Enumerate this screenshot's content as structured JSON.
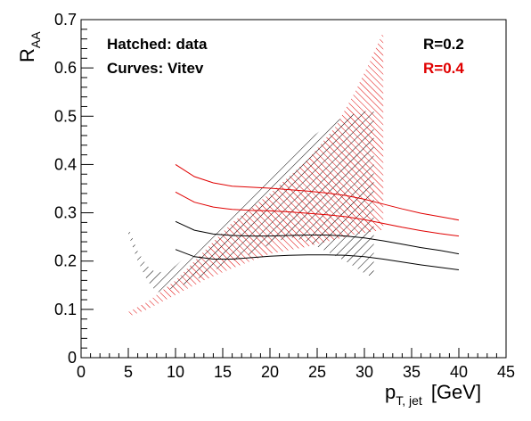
{
  "chart_data": {
    "type": "area",
    "xlabel": "p",
    "xlabel_sub": "T, jet",
    "xlabel_unit": "[GeV]",
    "ylabel": "R",
    "ylabel_sub": "AA",
    "xlim": [
      0,
      45
    ],
    "ylim": [
      0,
      0.7
    ],
    "xticks": [
      0,
      5,
      10,
      15,
      20,
      25,
      30,
      35,
      40,
      45
    ],
    "yticks": [
      0,
      0.1,
      0.2,
      0.3,
      0.4,
      0.5,
      0.6,
      0.7
    ],
    "xtick_labels": [
      "0",
      "5",
      "10",
      "15",
      "20",
      "25",
      "30",
      "35",
      "40",
      "45"
    ],
    "ytick_labels": [
      "0",
      "0.1",
      "0.2",
      "0.3",
      "0.4",
      "0.5",
      "0.6",
      "0.7"
    ],
    "legend": {
      "left_line1": "Hatched: data",
      "left_line2": "Curves: Vitev",
      "r02": "R=0.2",
      "r04": "R=0.4"
    },
    "colors": {
      "r02": "#000000",
      "r04": "#e00000"
    },
    "bands": [
      {
        "name": "R=0.2",
        "color": "#000000",
        "x": [
          5.0,
          6.0,
          7.0,
          8.0,
          9.0,
          10.0,
          12.0,
          14.0,
          16.0,
          18.0,
          20.0,
          22.0,
          24.0,
          26.0,
          28.0,
          30.0,
          31.0
        ],
        "upper": [
          0.27,
          0.22,
          0.19,
          0.175,
          0.18,
          0.19,
          0.225,
          0.26,
          0.3,
          0.34,
          0.38,
          0.42,
          0.45,
          0.48,
          0.5,
          0.51,
          0.515
        ],
        "lower": [
          0.255,
          0.2,
          0.16,
          0.135,
          0.14,
          0.145,
          0.16,
          0.18,
          0.2,
          0.215,
          0.235,
          0.25,
          0.24,
          0.22,
          0.2,
          0.175,
          0.165
        ]
      },
      {
        "name": "R=0.4",
        "color": "#e00000",
        "x": [
          5.0,
          7.0,
          10.0,
          13.0,
          16.0,
          20.0,
          24.0,
          27.0,
          29.0,
          30.5,
          32.0
        ],
        "upper": [
          0.095,
          0.115,
          0.16,
          0.22,
          0.28,
          0.34,
          0.41,
          0.48,
          0.55,
          0.61,
          0.675
        ],
        "lower": [
          0.085,
          0.1,
          0.13,
          0.16,
          0.185,
          0.215,
          0.23,
          0.245,
          0.255,
          0.26,
          0.265
        ]
      }
    ],
    "curves": [
      {
        "name": "R=0.4 upper",
        "color": "#e00000",
        "x": [
          10,
          12,
          14,
          16,
          18,
          20,
          22,
          24,
          26,
          28,
          30,
          32,
          34,
          36,
          38,
          40
        ],
        "y": [
          0.4,
          0.375,
          0.362,
          0.355,
          0.353,
          0.351,
          0.348,
          0.345,
          0.341,
          0.336,
          0.328,
          0.318,
          0.308,
          0.299,
          0.292,
          0.285
        ]
      },
      {
        "name": "R=0.4 lower",
        "color": "#e00000",
        "x": [
          10,
          12,
          14,
          16,
          18,
          20,
          22,
          24,
          26,
          28,
          30,
          32,
          34,
          36,
          38,
          40
        ],
        "y": [
          0.343,
          0.322,
          0.312,
          0.307,
          0.305,
          0.304,
          0.302,
          0.299,
          0.296,
          0.292,
          0.286,
          0.278,
          0.27,
          0.263,
          0.257,
          0.252
        ]
      },
      {
        "name": "R=0.2 upper",
        "color": "#000000",
        "x": [
          10,
          12,
          14,
          16,
          18,
          20,
          22,
          24,
          26,
          28,
          30,
          32,
          34,
          36,
          38,
          40
        ],
        "y": [
          0.282,
          0.264,
          0.256,
          0.253,
          0.252,
          0.252,
          0.253,
          0.254,
          0.254,
          0.252,
          0.248,
          0.242,
          0.235,
          0.228,
          0.222,
          0.215
        ]
      },
      {
        "name": "R=0.2 lower",
        "color": "#000000",
        "x": [
          10,
          12,
          14,
          16,
          18,
          20,
          22,
          24,
          26,
          28,
          30,
          32,
          34,
          36,
          38,
          40
        ],
        "y": [
          0.224,
          0.209,
          0.204,
          0.204,
          0.207,
          0.21,
          0.212,
          0.213,
          0.213,
          0.212,
          0.209,
          0.204,
          0.198,
          0.192,
          0.187,
          0.182
        ]
      }
    ]
  }
}
